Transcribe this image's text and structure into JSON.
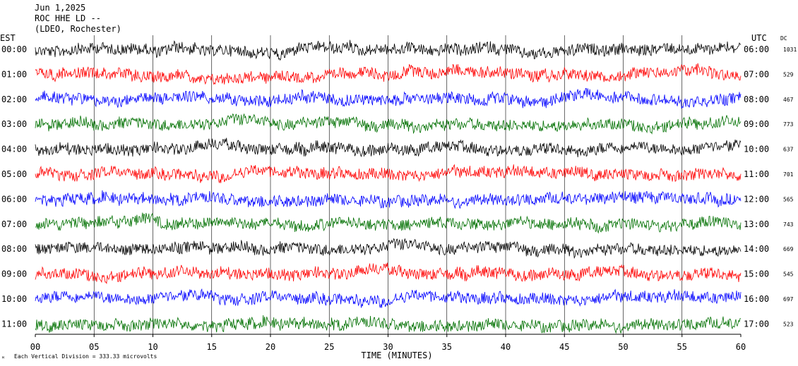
{
  "header": {
    "date": "Jun 1,2025",
    "station": "ROC HHE LD --",
    "network": "(LDEO, Rochester)"
  },
  "chart_data": {
    "type": "line",
    "description_tz": {
      "left": "EST",
      "right": "UTC",
      "dc_header": "DC"
    },
    "xlabel": "TIME (MINUTES)",
    "xlim": [
      0,
      60
    ],
    "x_ticks": [
      "00",
      "05",
      "10",
      "15",
      "20",
      "25",
      "30",
      "35",
      "40",
      "45",
      "50",
      "55",
      "60"
    ],
    "colors": [
      "#000000",
      "#ff0000",
      "#0000ff",
      "#007000"
    ],
    "rows": [
      {
        "left": "00:00",
        "right": "06:00",
        "dc": "1031"
      },
      {
        "left": "01:00",
        "right": "07:00",
        "dc": "529"
      },
      {
        "left": "02:00",
        "right": "08:00",
        "dc": "467"
      },
      {
        "left": "03:00",
        "right": "09:00",
        "dc": "773"
      },
      {
        "left": "04:00",
        "right": "10:00",
        "dc": "637"
      },
      {
        "left": "05:00",
        "right": "11:00",
        "dc": "701"
      },
      {
        "left": "06:00",
        "right": "12:00",
        "dc": "565"
      },
      {
        "left": "07:00",
        "right": "13:00",
        "dc": "743"
      },
      {
        "left": "08:00",
        "right": "14:00",
        "dc": "669"
      },
      {
        "left": "09:00",
        "right": "15:00",
        "dc": "545"
      },
      {
        "left": "10:00",
        "right": "16:00",
        "dc": "697"
      },
      {
        "left": "11:00",
        "right": "17:00",
        "dc": "523"
      }
    ],
    "grid": true,
    "footnote": "Each Vertical Division =  333.33 microvolts"
  }
}
